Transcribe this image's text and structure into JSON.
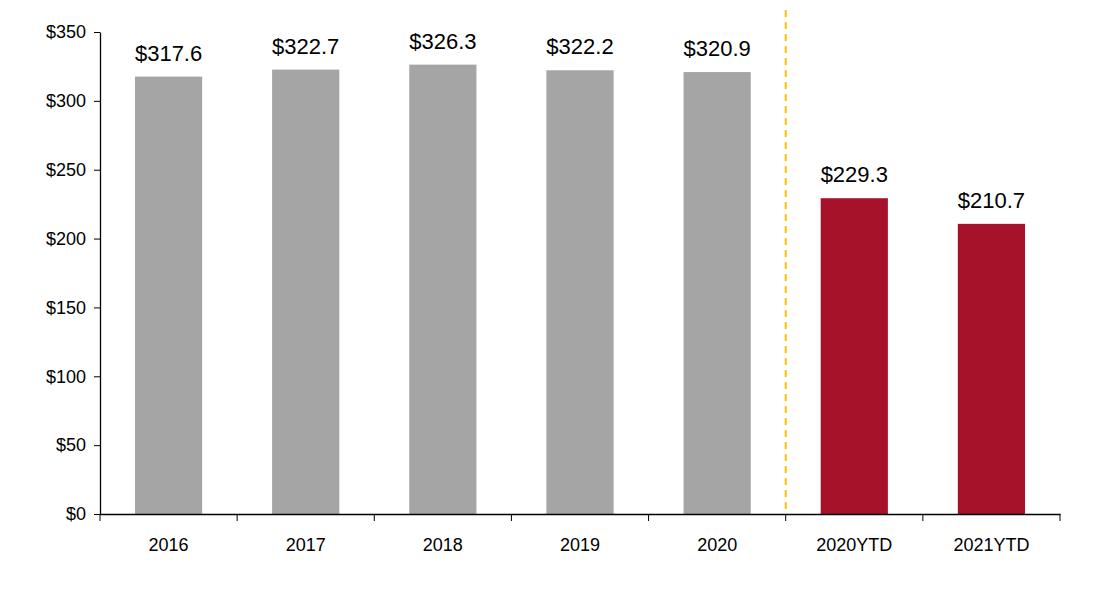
{
  "chart_data": {
    "type": "bar",
    "categories": [
      "2016",
      "2017",
      "2018",
      "2019",
      "2020",
      "2020YTD",
      "2021YTD"
    ],
    "values": [
      317.6,
      322.7,
      326.3,
      322.2,
      320.9,
      229.3,
      210.7
    ],
    "value_labels": [
      "$317.6",
      "$322.7",
      "$326.3",
      "$322.2",
      "$320.9",
      "$229.3",
      "$210.7"
    ],
    "colors": [
      "#a5a5a5",
      "#a5a5a5",
      "#a5a5a5",
      "#a5a5a5",
      "#a5a5a5",
      "#a6122a",
      "#a6122a"
    ],
    "ylim": [
      0,
      350
    ],
    "yticks": [
      {
        "value": 0,
        "label": "$0"
      },
      {
        "value": 50,
        "label": "$50"
      },
      {
        "value": 100,
        "label": "$100"
      },
      {
        "value": 150,
        "label": "$150"
      },
      {
        "value": 200,
        "label": "$200"
      },
      {
        "value": 250,
        "label": "$250"
      },
      {
        "value": 300,
        "label": "$300"
      },
      {
        "value": 350,
        "label": "$350"
      }
    ],
    "data_labels": true,
    "grid": false
  }
}
